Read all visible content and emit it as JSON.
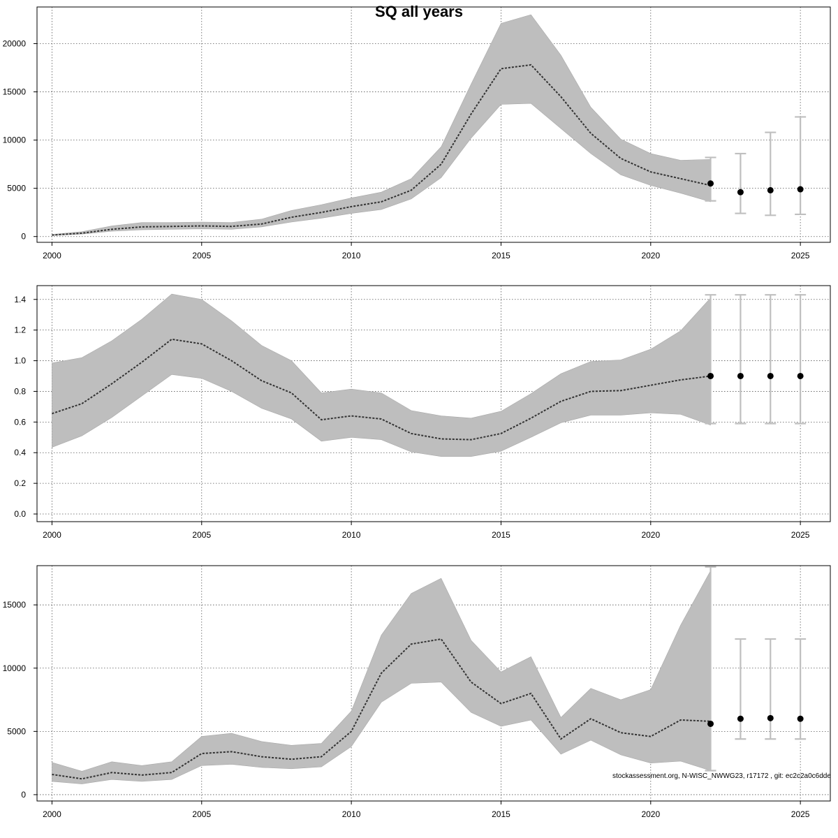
{
  "figure": {
    "title": "SQ all years",
    "footnote": "stockassessment.org, N-WISC_NWWG23, r17172 , git: ec2c2a0c6dde"
  },
  "colors": {
    "band": "#bebebe",
    "band_edge": "#a8a8a8",
    "line": "#333333",
    "point": "#000000",
    "forecast_bar": "#bfbfbf",
    "grid": "#555555"
  },
  "chart_data": [
    {
      "type": "line",
      "panel": "ssb",
      "xlabel": "",
      "ylabel": "",
      "xlim": [
        1999.5,
        2026
      ],
      "ylim": [
        -600,
        23800
      ],
      "xticks": [
        2000,
        2005,
        2010,
        2015,
        2020,
        2025
      ],
      "yticks": [
        0,
        5000,
        10000,
        15000,
        20000
      ],
      "grid": true,
      "series": [
        {
          "x": [
            2000,
            2001,
            2002,
            2003,
            2004,
            2005,
            2006,
            2007,
            2008,
            2009,
            2010,
            2011,
            2012,
            2013,
            2014,
            2015,
            2016,
            2017,
            2018,
            2019,
            2020,
            2021,
            2022
          ],
          "values": [
            150,
            350,
            750,
            1000,
            1050,
            1100,
            1050,
            1300,
            2000,
            2500,
            3100,
            3600,
            4800,
            7500,
            12700,
            17400,
            17800,
            14500,
            10700,
            8100,
            6700,
            6000,
            5300
          ],
          "lower": [
            100,
            250,
            550,
            700,
            750,
            800,
            750,
            1000,
            1500,
            1900,
            2400,
            2800,
            3900,
            6100,
            10200,
            13700,
            13800,
            11200,
            8600,
            6400,
            5300,
            4500,
            3600
          ],
          "upper": [
            220,
            500,
            1100,
            1450,
            1450,
            1500,
            1450,
            1800,
            2700,
            3300,
            4000,
            4600,
            6000,
            9300,
            15800,
            22100,
            23000,
            18800,
            13400,
            10100,
            8600,
            7900,
            8000
          ]
        }
      ],
      "forecast": [
        {
          "x": 2022,
          "value": 5500,
          "lower": 3700,
          "upper": 8200
        },
        {
          "x": 2023,
          "value": 4600,
          "lower": 2400,
          "upper": 8600
        },
        {
          "x": 2024,
          "value": 4800,
          "lower": 2200,
          "upper": 10800
        },
        {
          "x": 2025,
          "value": 4900,
          "lower": 2300,
          "upper": 12400
        }
      ]
    },
    {
      "type": "line",
      "panel": "fishing-mortality",
      "xlabel": "",
      "ylabel": "",
      "xlim": [
        1999.5,
        2026
      ],
      "ylim": [
        -0.05,
        1.49
      ],
      "xticks": [
        2000,
        2005,
        2010,
        2015,
        2020,
        2025
      ],
      "yticks": [
        "0.0",
        "0.2",
        "0.4",
        "0.6",
        "0.8",
        "1.0",
        "1.2",
        "1.4"
      ],
      "grid": true,
      "series": [
        {
          "x": [
            2000,
            2001,
            2002,
            2003,
            2004,
            2005,
            2006,
            2007,
            2008,
            2009,
            2010,
            2011,
            2012,
            2013,
            2014,
            2015,
            2016,
            2017,
            2018,
            2019,
            2020,
            2021,
            2022
          ],
          "values": [
            0.655,
            0.72,
            0.85,
            0.99,
            1.14,
            1.11,
            1.0,
            0.87,
            0.79,
            0.615,
            0.64,
            0.62,
            0.525,
            0.49,
            0.485,
            0.525,
            0.625,
            0.735,
            0.8,
            0.805,
            0.84,
            0.875,
            0.9
          ],
          "lower": [
            0.435,
            0.51,
            0.63,
            0.77,
            0.91,
            0.885,
            0.8,
            0.69,
            0.62,
            0.475,
            0.5,
            0.485,
            0.405,
            0.375,
            0.375,
            0.41,
            0.5,
            0.595,
            0.645,
            0.645,
            0.66,
            0.65,
            0.58
          ],
          "upper": [
            0.985,
            1.02,
            1.13,
            1.27,
            1.435,
            1.4,
            1.26,
            1.1,
            1.0,
            0.79,
            0.815,
            0.79,
            0.675,
            0.64,
            0.625,
            0.67,
            0.785,
            0.915,
            0.995,
            1.005,
            1.075,
            1.195,
            1.41
          ]
        }
      ],
      "forecast": [
        {
          "x": 2022,
          "value": 0.9,
          "lower": 0.59,
          "upper": 1.43
        },
        {
          "x": 2023,
          "value": 0.9,
          "lower": 0.59,
          "upper": 1.43
        },
        {
          "x": 2024,
          "value": 0.9,
          "lower": 0.59,
          "upper": 1.43
        },
        {
          "x": 2025,
          "value": 0.9,
          "lower": 0.59,
          "upper": 1.43
        }
      ]
    },
    {
      "type": "line",
      "panel": "recruits",
      "xlabel": "",
      "ylabel": "",
      "xlim": [
        1999.5,
        2026
      ],
      "ylim": [
        -500,
        18100
      ],
      "xticks": [
        2000,
        2005,
        2010,
        2015,
        2020,
        2025
      ],
      "yticks": [
        0,
        5000,
        10000,
        15000
      ],
      "grid": true,
      "series": [
        {
          "x": [
            2000,
            2001,
            2002,
            2003,
            2004,
            2005,
            2006,
            2007,
            2008,
            2009,
            2010,
            2011,
            2012,
            2013,
            2014,
            2015,
            2016,
            2017,
            2018,
            2019,
            2020,
            2021,
            2022
          ],
          "values": [
            1600,
            1250,
            1750,
            1550,
            1750,
            3250,
            3400,
            3000,
            2800,
            3000,
            5000,
            9600,
            11900,
            12300,
            8900,
            7200,
            8000,
            4400,
            6000,
            4900,
            4600,
            5900,
            5800
          ],
          "lower": [
            1050,
            850,
            1200,
            1050,
            1200,
            2300,
            2400,
            2150,
            2050,
            2200,
            3800,
            7300,
            8800,
            8900,
            6500,
            5400,
            5900,
            3200,
            4300,
            3150,
            2500,
            2650,
            1900
          ],
          "upper": [
            2550,
            1850,
            2600,
            2300,
            2600,
            4600,
            4850,
            4200,
            3900,
            4050,
            6600,
            12600,
            15900,
            17100,
            12200,
            9700,
            10900,
            6100,
            8400,
            7500,
            8300,
            13400,
            17700
          ]
        }
      ],
      "forecast": [
        {
          "x": 2022,
          "value": 5600,
          "lower": 1900,
          "upper": 18000
        },
        {
          "x": 2023,
          "value": 6000,
          "lower": 4400,
          "upper": 12300
        },
        {
          "x": 2024,
          "value": 6050,
          "lower": 4400,
          "upper": 12300
        },
        {
          "x": 2025,
          "value": 6000,
          "lower": 4400,
          "upper": 12300
        }
      ]
    }
  ]
}
